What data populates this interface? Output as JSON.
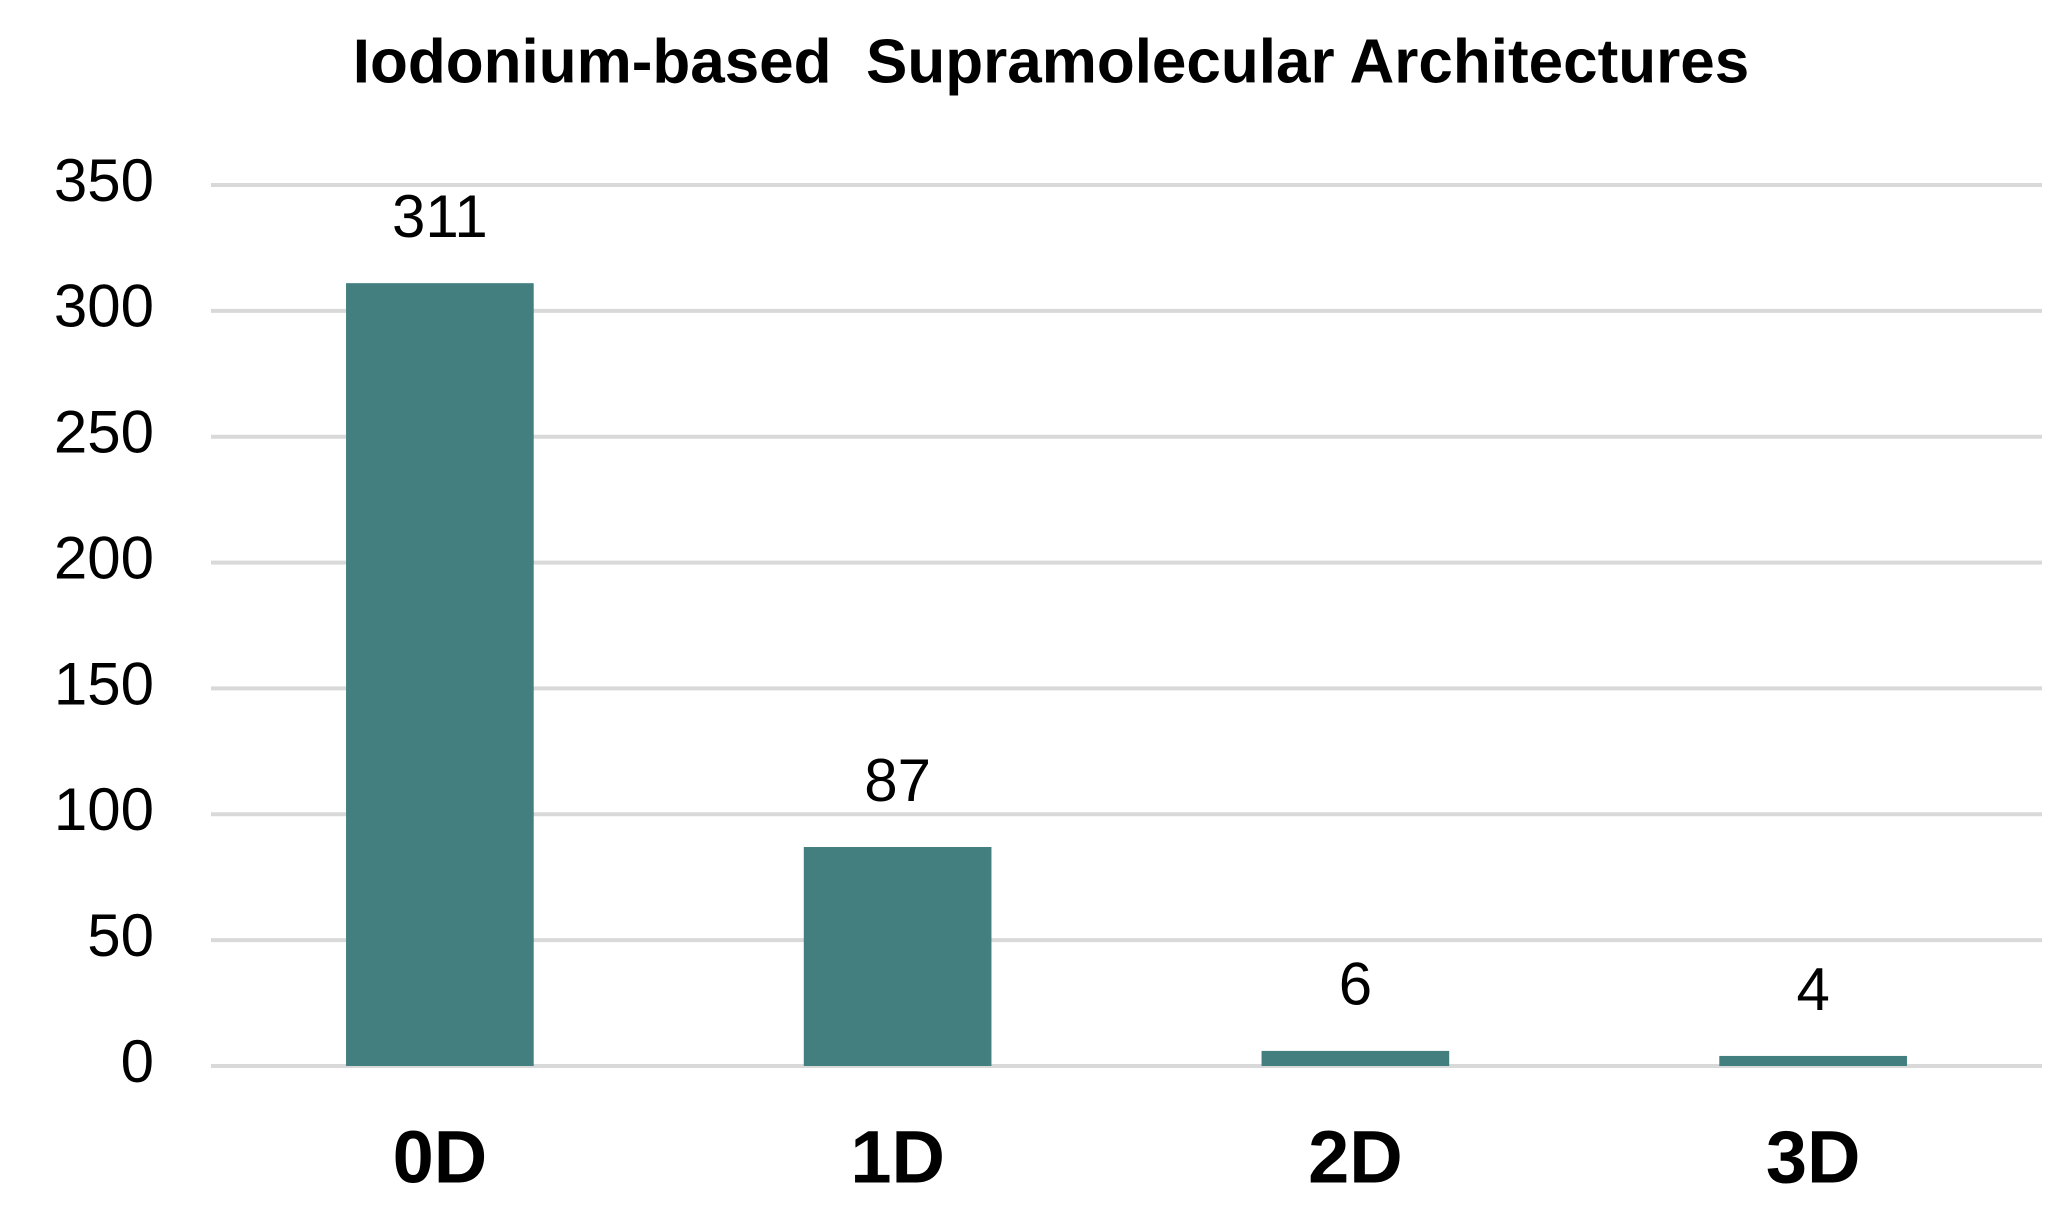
{
  "chart_data": {
    "type": "bar",
    "title": "Iodonium-based  Supramolecular Architectures",
    "categories": [
      "0D",
      "1D",
      "2D",
      "3D"
    ],
    "values": [
      311,
      87,
      6,
      4
    ],
    "color": "#437f7e",
    "ylim": [
      0,
      350
    ],
    "yticks": [
      0,
      50,
      100,
      150,
      200,
      250,
      300,
      350
    ],
    "grid": true
  }
}
